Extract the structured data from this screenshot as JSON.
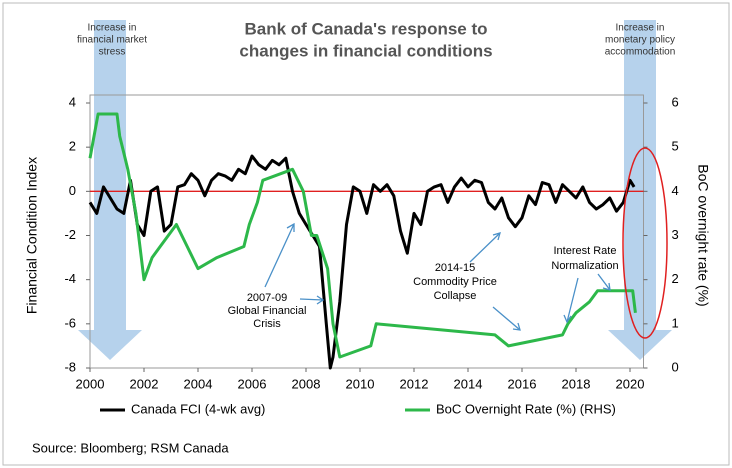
{
  "chart_data": {
    "type": "line",
    "title": [
      "Bank of Canada's response to",
      "changes in financial conditions"
    ],
    "y_label": "Financial Condition Index",
    "y2_label": "BoC overnight rate (%)",
    "source": "Source: Bloomberg; RSM Canada",
    "xlim": [
      2000,
      2020.5
    ],
    "xticks": [
      2000,
      2002,
      2004,
      2006,
      2008,
      2010,
      2012,
      2014,
      2016,
      2018,
      2020
    ],
    "ylim": [
      -8,
      4
    ],
    "yticks": [
      -8,
      -6,
      -4,
      -2,
      0,
      2,
      4
    ],
    "y2lim": [
      0,
      6
    ],
    "y2ticks": [
      0,
      1,
      2,
      3,
      4,
      5,
      6
    ],
    "zero_line_color": "#e02020",
    "series": [
      {
        "name": "Canada FCI (4-wk avg)",
        "color": "#000000",
        "axis": "y",
        "x": [
          2000.0,
          2000.25,
          2000.5,
          2000.75,
          2001.0,
          2001.25,
          2001.5,
          2001.75,
          2002.0,
          2002.25,
          2002.5,
          2002.75,
          2003.0,
          2003.25,
          2003.5,
          2003.75,
          2004.0,
          2004.25,
          2004.5,
          2004.75,
          2005.0,
          2005.25,
          2005.5,
          2005.75,
          2006.0,
          2006.25,
          2006.5,
          2006.75,
          2007.0,
          2007.25,
          2007.5,
          2007.75,
          2008.0,
          2008.25,
          2008.5,
          2008.75,
          2008.9,
          2009.0,
          2009.25,
          2009.5,
          2009.75,
          2010.0,
          2010.25,
          2010.5,
          2010.75,
          2011.0,
          2011.25,
          2011.5,
          2011.75,
          2012.0,
          2012.25,
          2012.5,
          2012.75,
          2013.0,
          2013.25,
          2013.5,
          2013.75,
          2014.0,
          2014.25,
          2014.5,
          2014.75,
          2015.0,
          2015.25,
          2015.5,
          2015.75,
          2016.0,
          2016.25,
          2016.5,
          2016.75,
          2017.0,
          2017.25,
          2017.5,
          2017.75,
          2018.0,
          2018.25,
          2018.5,
          2018.75,
          2019.0,
          2019.25,
          2019.5,
          2019.75,
          2020.0,
          2020.15
        ],
        "values": [
          -0.5,
          -1.0,
          0.2,
          -0.3,
          -0.8,
          -1.0,
          0.5,
          -1.5,
          -2.0,
          0.0,
          0.2,
          -1.8,
          -1.5,
          0.2,
          0.3,
          0.8,
          0.5,
          -0.2,
          0.5,
          0.8,
          0.7,
          0.5,
          1.0,
          0.8,
          1.6,
          1.2,
          1.0,
          1.4,
          1.2,
          1.5,
          0.0,
          -1.0,
          -1.5,
          -2.0,
          -2.5,
          -6.0,
          -8.0,
          -7.5,
          -5.0,
          -1.5,
          0.2,
          0.0,
          -1.0,
          0.3,
          0.0,
          0.3,
          -0.2,
          -1.8,
          -2.8,
          -1.0,
          -1.5,
          0.0,
          0.2,
          0.3,
          -0.5,
          0.2,
          0.6,
          0.2,
          0.5,
          0.4,
          -0.5,
          -0.8,
          -0.3,
          -1.2,
          -1.6,
          -1.2,
          -0.2,
          -0.6,
          0.4,
          0.3,
          -0.5,
          0.3,
          0.0,
          -0.3,
          0.2,
          -0.5,
          -0.8,
          -0.6,
          -0.3,
          -0.9,
          -0.5,
          0.5,
          0.2
        ]
      },
      {
        "name": "BoC Overnight Rate (%) (RHS)",
        "color": "#2db84a",
        "axis": "y2",
        "x": [
          2000.0,
          2000.3,
          2001.0,
          2001.1,
          2001.4,
          2001.7,
          2002.0,
          2002.3,
          2002.6,
          2003.2,
          2003.6,
          2004.0,
          2004.7,
          2005.7,
          2005.9,
          2006.2,
          2006.4,
          2007.5,
          2007.9,
          2008.2,
          2008.4,
          2008.8,
          2009.0,
          2009.25,
          2010.4,
          2010.6,
          2015.0,
          2015.5,
          2017.5,
          2017.7,
          2018.0,
          2018.5,
          2018.8,
          2020.1,
          2020.2
        ],
        "values": [
          4.75,
          5.75,
          5.75,
          5.25,
          4.5,
          3.5,
          2.0,
          2.5,
          2.75,
          3.25,
          2.75,
          2.25,
          2.5,
          2.75,
          3.25,
          3.75,
          4.25,
          4.5,
          4.0,
          3.0,
          3.0,
          2.25,
          1.0,
          0.25,
          0.5,
          1.0,
          0.75,
          0.5,
          0.75,
          1.0,
          1.25,
          1.5,
          1.75,
          1.75,
          1.25
        ]
      }
    ],
    "annotations": [
      {
        "lines": [
          "Increase in",
          "financial market",
          "stress"
        ]
      },
      {
        "lines": [
          "Increase in",
          "monetary policy",
          "accommodation"
        ]
      },
      {
        "lines": [
          "2007-09",
          "Global Financial",
          "Crisis"
        ]
      },
      {
        "lines": [
          "2014-15",
          "Commodity Price",
          "Collapse"
        ]
      },
      {
        "lines": [
          "Interest Rate",
          "Normalization"
        ]
      }
    ]
  }
}
